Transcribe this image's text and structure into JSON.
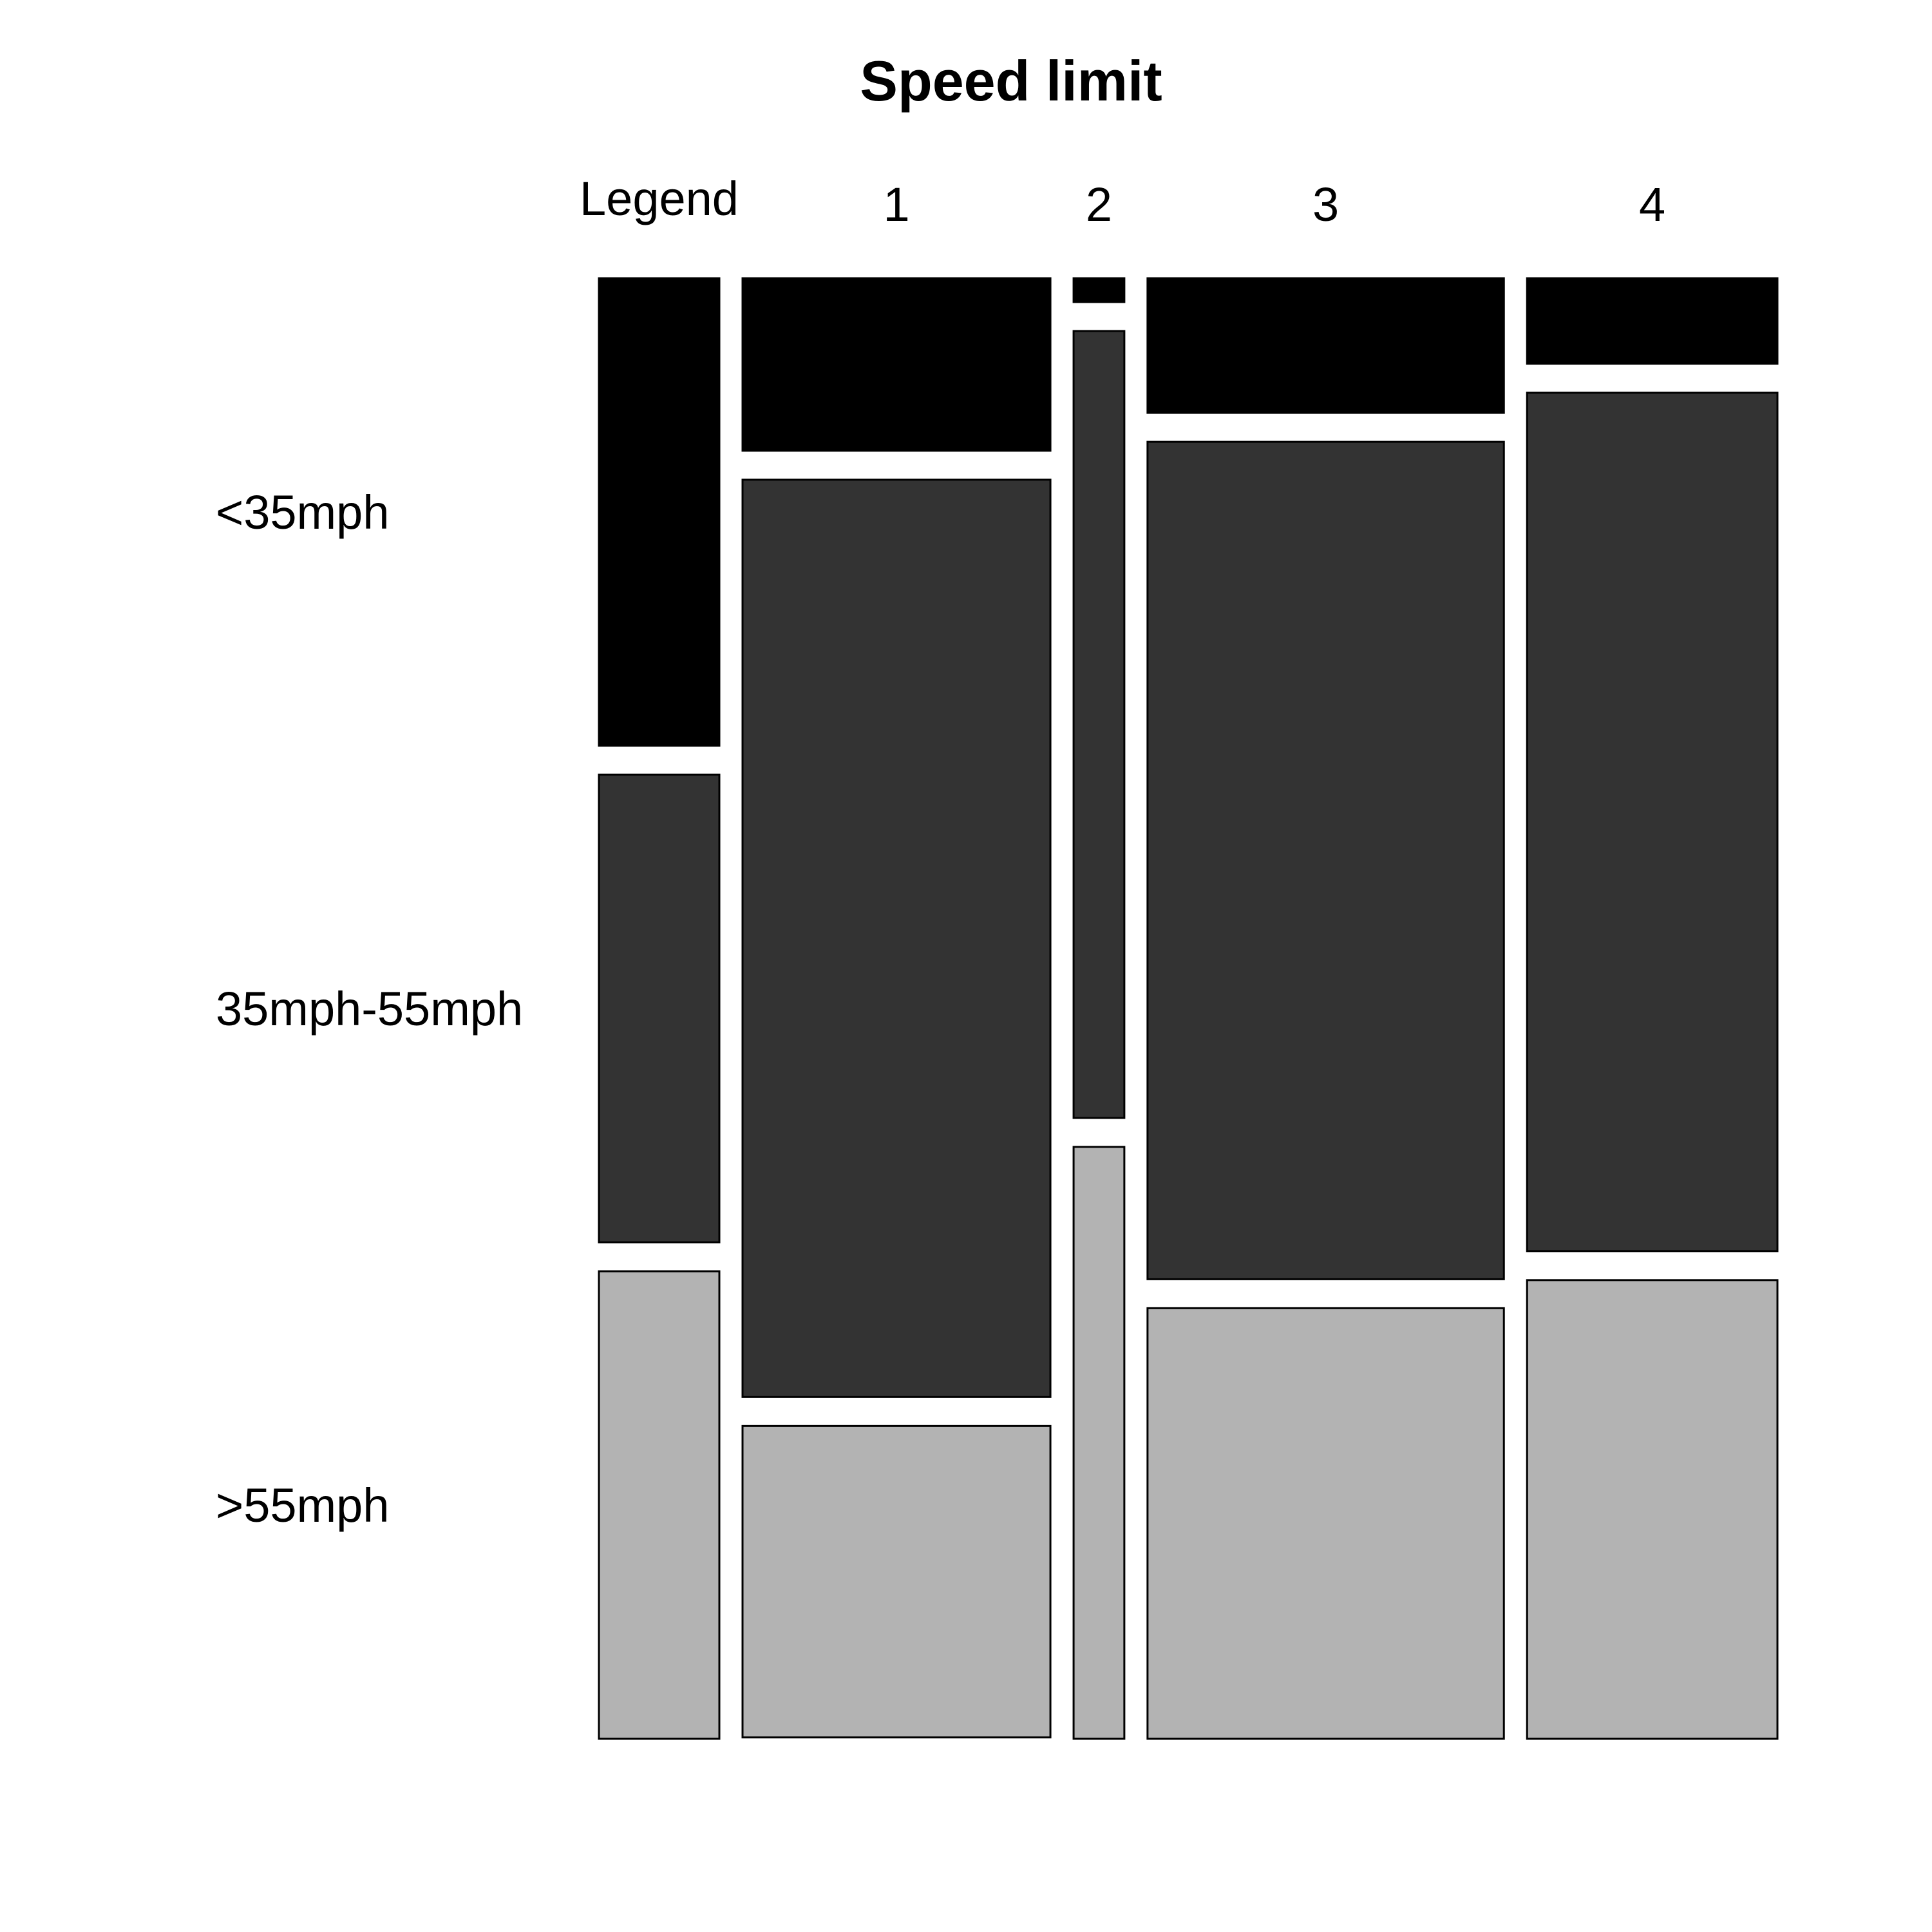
{
  "chart_data": {
    "type": "mosaic",
    "title": "Speed limit",
    "legend_label": "Legend",
    "columns": [
      "1",
      "2",
      "3",
      "4"
    ],
    "column_proportions": [
      0.273,
      0.045,
      0.316,
      0.222
    ],
    "row_categories": [
      "<35mph",
      "35mph-55mph",
      ">55mph"
    ],
    "colors": [
      "#000000",
      "#333333",
      "#b3b3b3"
    ],
    "values": [
      {
        "column": "1",
        "<35mph": 0.123,
        "35mph-55mph": 0.654,
        ">55mph": 0.222
      },
      {
        "column": "2",
        "<35mph": 0.017,
        "35mph-55mph": 0.561,
        ">55mph": 0.422
      },
      {
        "column": "3",
        "<35mph": 0.096,
        "35mph-55mph": 0.597,
        ">55mph": 0.307
      },
      {
        "column": "4",
        "<35mph": 0.061,
        "35mph-55mph": 0.612,
        ">55mph": 0.327
      }
    ]
  }
}
